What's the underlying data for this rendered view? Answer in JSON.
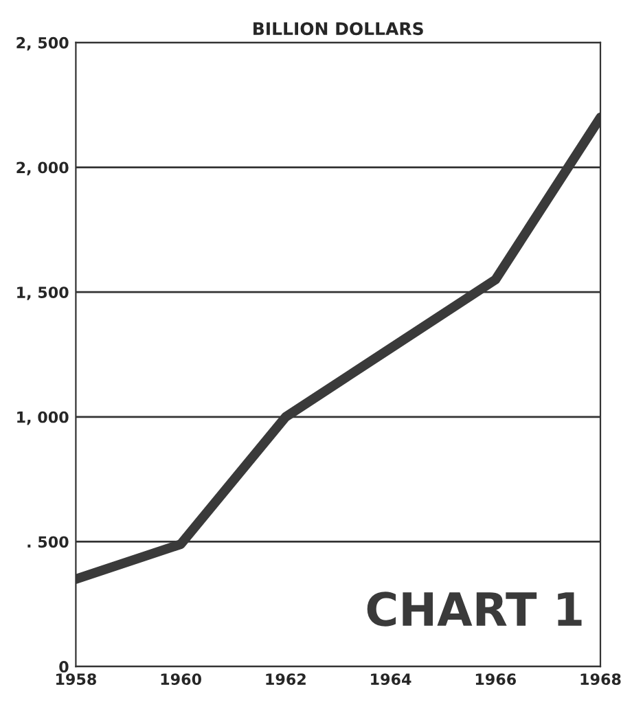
{
  "chart_data": {
    "type": "line",
    "title": "BILLION DOLLARS",
    "x": [
      1958,
      1960,
      1962,
      1966,
      1968
    ],
    "series": [
      {
        "color": "#3a3a3a",
        "values": [
          350,
          490,
          1000,
          1550,
          2200
        ]
      }
    ],
    "xlim": [
      1958,
      1968
    ],
    "xticks": [
      1958,
      1960,
      1962,
      1964,
      1966,
      1968
    ],
    "ylim": [
      0,
      2500
    ],
    "yticks": [
      {
        "value": 0,
        "label": "0"
      },
      {
        "value": 500,
        "label": ". 500"
      },
      {
        "value": 1000,
        "label": "1, 000"
      },
      {
        "value": 1500,
        "label": "1, 500"
      },
      {
        "value": 2000,
        "label": "2, 000"
      },
      {
        "value": 2500,
        "label": "2, 500"
      }
    ],
    "grid": "y",
    "marker": "none",
    "line_style": "solid",
    "annotations": [
      "CHART 1"
    ]
  }
}
